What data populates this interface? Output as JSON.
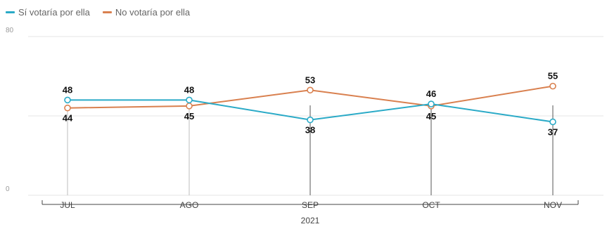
{
  "legend": {
    "items": [
      {
        "label": "Sí votaría por ella",
        "color": "#2aaac7"
      },
      {
        "label": "No votaría por ella",
        "color": "#d9804f"
      }
    ]
  },
  "chart_data": {
    "type": "line",
    "categories": [
      "JUL",
      "AGO",
      "SEP",
      "OCT",
      "NOV"
    ],
    "xlabel": "2021",
    "ylim": [
      0,
      80
    ],
    "yticks": [
      "0",
      "80"
    ],
    "grid": true,
    "legend_position": "top-left",
    "series": [
      {
        "name": "Sí votaría por ella",
        "color": "#2aaac7",
        "values": [
          48,
          48,
          38,
          46,
          37
        ]
      },
      {
        "name": "No votaría por ella",
        "color": "#d9804f",
        "values": [
          44,
          45,
          53,
          45,
          55
        ]
      }
    ]
  }
}
